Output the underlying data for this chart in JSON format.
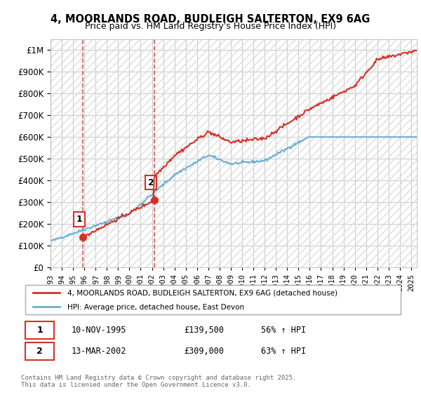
{
  "title": "4, MOORLANDS ROAD, BUDLEIGH SALTERTON, EX9 6AG",
  "subtitle": "Price paid vs. HM Land Registry's House Price Index (HPI)",
  "legend_line1": "4, MOORLANDS ROAD, BUDLEIGH SALTERTON, EX9 6AG (detached house)",
  "legend_line2": "HPI: Average price, detached house, East Devon",
  "purchase1_label": "1",
  "purchase1_date": "10-NOV-1995",
  "purchase1_price": "£139,500",
  "purchase1_hpi": "56% ↑ HPI",
  "purchase1_year": 1995.87,
  "purchase1_value": 139500,
  "purchase2_label": "2",
  "purchase2_date": "13-MAR-2002",
  "purchase2_price": "£309,000",
  "purchase2_hpi": "63% ↑ HPI",
  "purchase2_year": 2002.2,
  "purchase2_value": 309000,
  "hpi_color": "#6baed6",
  "price_color": "#d73027",
  "vline_color": "#d73027",
  "background_color": "#ffffff",
  "grid_color": "#cccccc",
  "ylim": [
    0,
    1050000
  ],
  "xlim_start": 1993,
  "xlim_end": 2025.5,
  "footnote": "Contains HM Land Registry data © Crown copyright and database right 2025.\nThis data is licensed under the Open Government Licence v3.0."
}
